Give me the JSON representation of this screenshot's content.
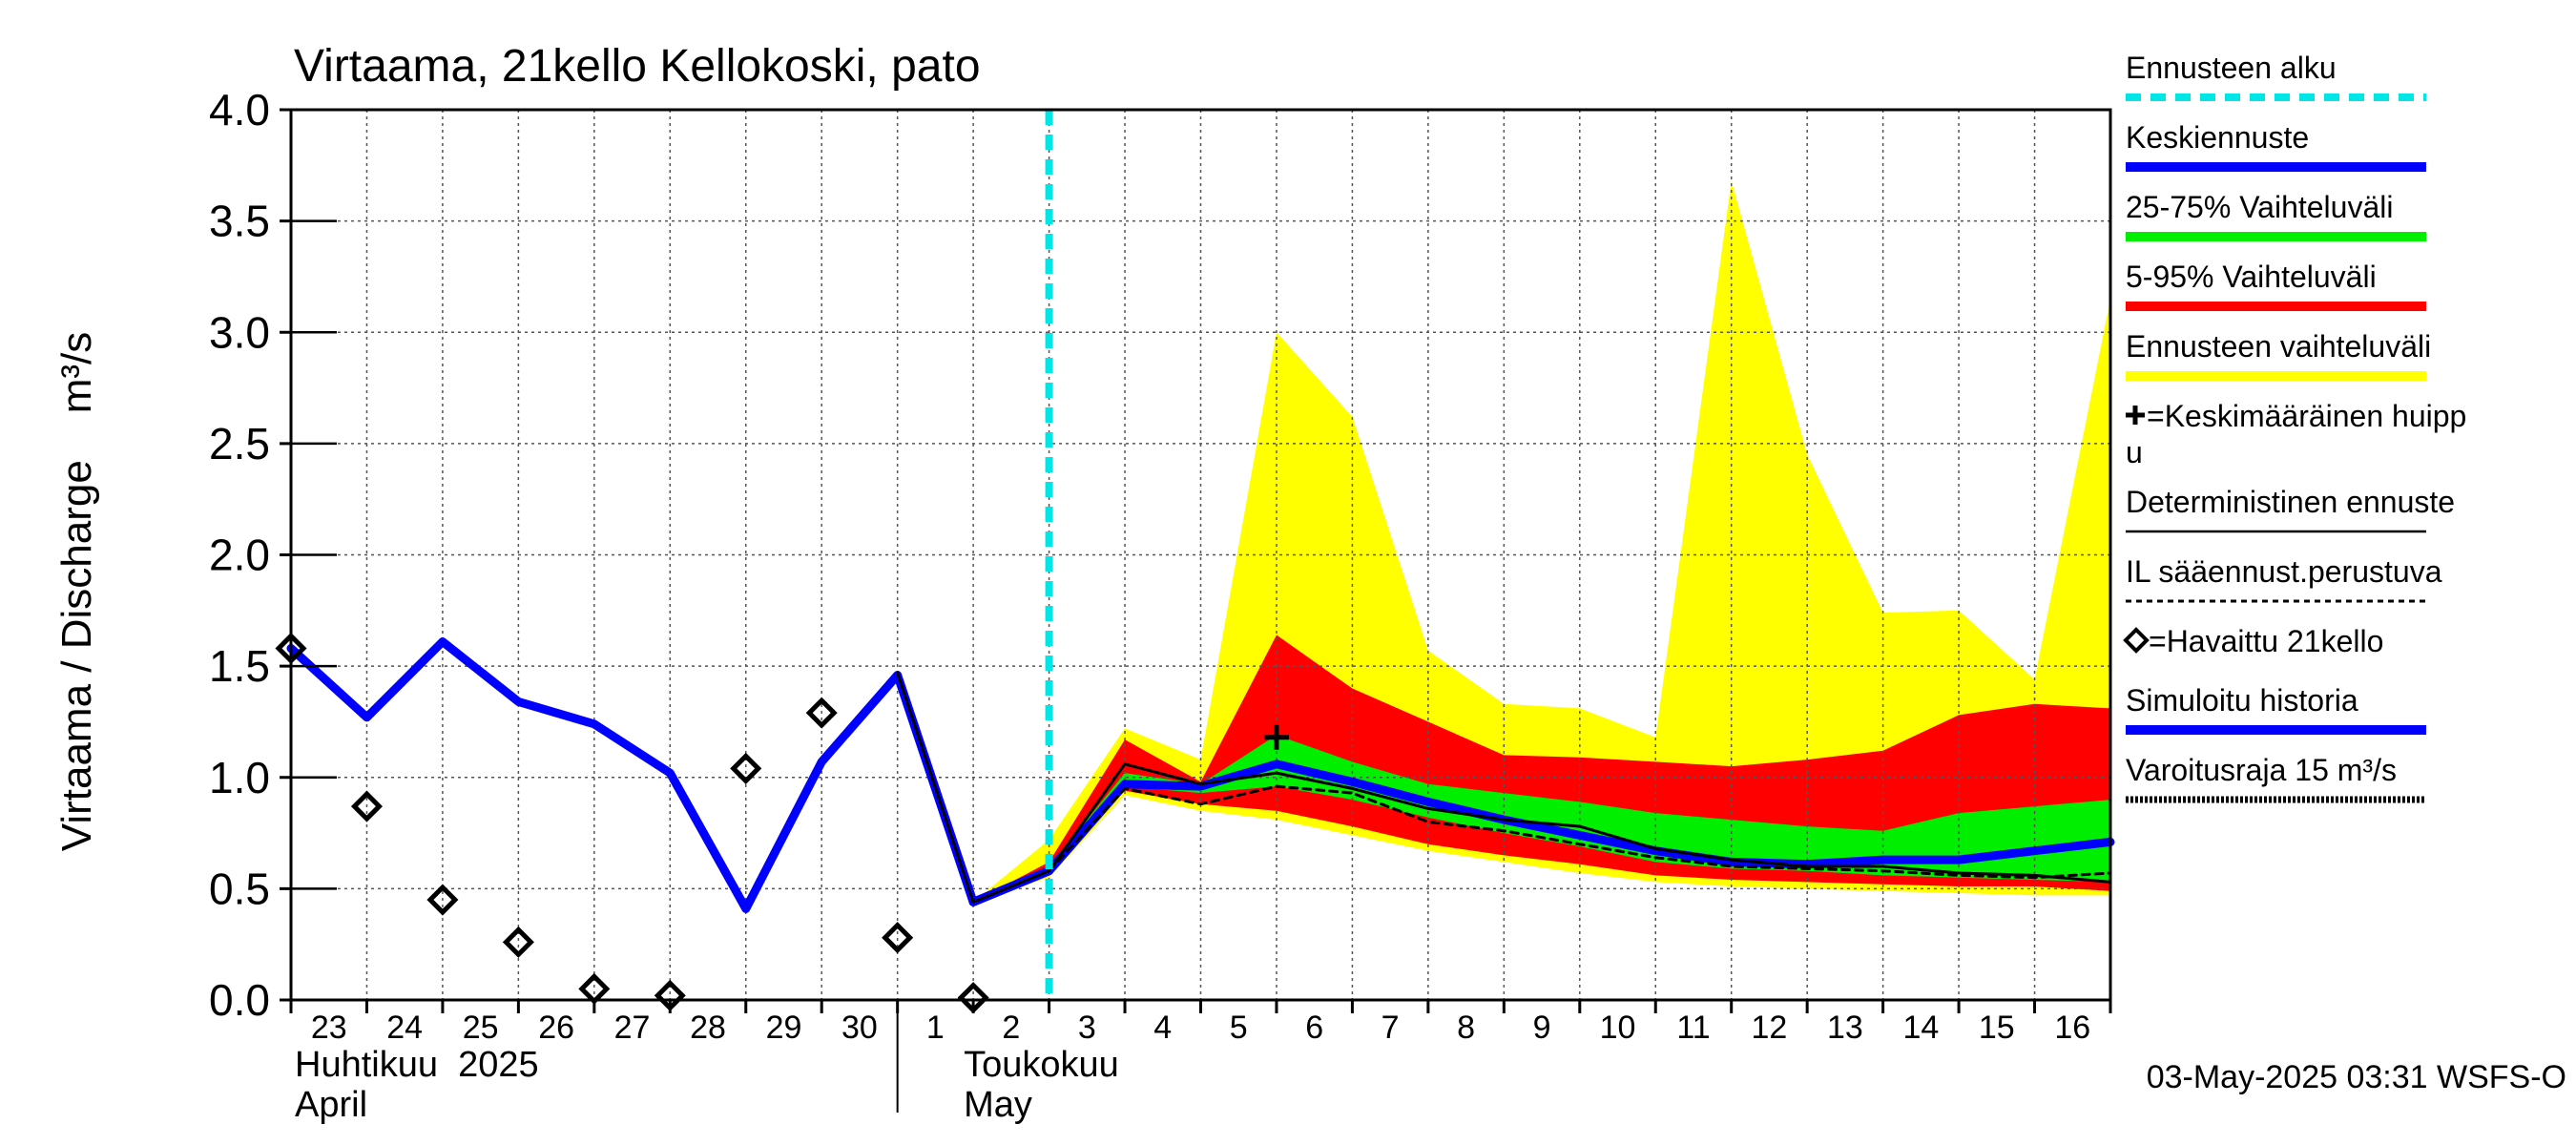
{
  "chart_data": {
    "type": "area",
    "title": "Virtaama, 21kello Kellokoski, pato",
    "ylabel": "Virtaama / Discharge    m³/s",
    "ylim": [
      0.0,
      4.0
    ],
    "yticks": [
      0.0,
      0.5,
      1.0,
      1.5,
      2.0,
      2.5,
      3.0,
      3.5,
      4.0
    ],
    "ytick_labels": [
      "0.0",
      "0.5",
      "1.0",
      "1.5",
      "2.0",
      "2.5",
      "3.0",
      "3.5",
      "4.0"
    ],
    "x_days": [
      "23",
      "24",
      "25",
      "26",
      "27",
      "28",
      "29",
      "30",
      "1",
      "2",
      "3",
      "4",
      "5",
      "6",
      "7",
      "8",
      "9",
      "10",
      "11",
      "12",
      "13",
      "14",
      "15",
      "16"
    ],
    "x_range_days": [
      0,
      24
    ],
    "month_labels": {
      "april_fi": "Huhtikuu  2025",
      "april_en": "April",
      "may_fi": "Toukokuu",
      "may_en": "May"
    },
    "forecast_start_day": 10,
    "series": {
      "forecast_range": {
        "name": "Ennusteen vaihteluväli",
        "color": "#ffff00",
        "x": [
          9,
          10,
          11,
          12,
          13,
          14,
          15,
          16,
          17,
          18,
          19,
          20,
          21,
          22,
          23,
          24
        ],
        "upper": [
          0.44,
          0.72,
          1.22,
          1.08,
          3.0,
          2.62,
          1.57,
          1.33,
          1.31,
          1.18,
          3.68,
          2.45,
          1.74,
          1.75,
          1.44,
          3.15
        ],
        "lower": [
          0.44,
          0.55,
          0.92,
          0.85,
          0.81,
          0.74,
          0.67,
          0.62,
          0.57,
          0.53,
          0.51,
          0.5,
          0.49,
          0.48,
          0.47,
          0.47
        ]
      },
      "range_5_95": {
        "name": "5-95% Vaihteluväli",
        "color": "#ff0000",
        "x": [
          9,
          10,
          11,
          12,
          13,
          14,
          15,
          16,
          17,
          18,
          19,
          20,
          21,
          22,
          23,
          24
        ],
        "upper": [
          0.44,
          0.62,
          1.17,
          0.98,
          1.64,
          1.4,
          1.25,
          1.1,
          1.09,
          1.07,
          1.05,
          1.08,
          1.12,
          1.28,
          1.33,
          1.31
        ],
        "lower": [
          0.44,
          0.57,
          0.94,
          0.88,
          0.85,
          0.78,
          0.7,
          0.65,
          0.61,
          0.56,
          0.54,
          0.53,
          0.52,
          0.51,
          0.51,
          0.49
        ]
      },
      "range_25_75": {
        "name": "25-75% Vaihteluväli",
        "color": "#00ee00",
        "x": [
          9,
          10,
          11,
          12,
          13,
          14,
          15,
          16,
          17,
          18,
          19,
          20,
          21,
          22,
          23,
          24
        ],
        "upper": [
          0.44,
          0.6,
          1.02,
          0.97,
          1.19,
          1.07,
          0.97,
          0.93,
          0.89,
          0.84,
          0.81,
          0.78,
          0.76,
          0.84,
          0.87,
          0.9
        ],
        "lower": [
          0.44,
          0.58,
          0.96,
          0.93,
          0.96,
          0.9,
          0.82,
          0.75,
          0.69,
          0.62,
          0.59,
          0.58,
          0.56,
          0.55,
          0.54,
          0.53
        ]
      },
      "mean_forecast": {
        "name": "Keskiennuste",
        "color": "#0000ff",
        "x": [
          9,
          10,
          11,
          12,
          13,
          14,
          15,
          16,
          17,
          18,
          19,
          20,
          21,
          22,
          23,
          24
        ],
        "values": [
          0.44,
          0.58,
          0.97,
          0.96,
          1.06,
          0.98,
          0.89,
          0.81,
          0.74,
          0.67,
          0.62,
          0.61,
          0.63,
          0.63,
          0.67,
          0.71
        ]
      },
      "deterministic": {
        "name": "Deterministinen ennuste",
        "color": "#000000",
        "x": [
          8,
          9,
          10,
          11,
          12,
          13,
          14,
          15,
          16,
          17,
          18,
          19,
          20,
          21,
          22,
          23,
          24
        ],
        "values": [
          1.47,
          0.44,
          0.58,
          1.06,
          0.97,
          1.02,
          0.95,
          0.86,
          0.81,
          0.78,
          0.68,
          0.63,
          0.6,
          0.6,
          0.57,
          0.56,
          0.53
        ]
      },
      "weather_forecast": {
        "name": "IL sääennust.perustuva",
        "color": "#000000",
        "x": [
          10,
          11,
          12,
          13,
          14,
          15,
          16,
          17,
          18,
          19,
          20,
          21,
          22,
          23,
          24
        ],
        "values": [
          0.58,
          0.95,
          0.88,
          0.96,
          0.93,
          0.8,
          0.76,
          0.7,
          0.64,
          0.6,
          0.59,
          0.58,
          0.56,
          0.55,
          0.57
        ]
      },
      "simulated_history": {
        "name": "Simuloitu historia",
        "color": "#0000ff",
        "x": [
          0,
          1,
          2,
          3,
          4,
          5,
          6,
          7,
          8,
          9,
          10
        ],
        "values": [
          1.58,
          1.27,
          1.61,
          1.34,
          1.24,
          1.02,
          0.41,
          1.07,
          1.46,
          0.44,
          0.58
        ]
      },
      "observed": {
        "name": "=Havaittu 21kello",
        "x": [
          0,
          1,
          2,
          3,
          4,
          5,
          6,
          7,
          8,
          9
        ],
        "values": [
          1.58,
          0.87,
          0.45,
          0.26,
          0.05,
          0.02,
          1.04,
          1.29,
          0.28,
          0.01
        ]
      },
      "mean_peak": {
        "name": "=Keskimääräinen huippu",
        "x": 13,
        "value": 1.18
      }
    },
    "legend": {
      "position": "right",
      "items": [
        {
          "key": "forecast_start",
          "label": "Ennusteen alku",
          "color": "#00e5e5",
          "style": "dashed"
        },
        {
          "key": "mean",
          "label": "Keskiennuste",
          "color": "#0000ff",
          "style": "thick"
        },
        {
          "key": "r2575",
          "label": "25-75% Vaihteluväli",
          "color": "#00ee00",
          "style": "thick"
        },
        {
          "key": "r595",
          "label": "5-95% Vaihteluväli",
          "color": "#ff0000",
          "style": "thick"
        },
        {
          "key": "range",
          "label": "Ennusteen vaihteluväli",
          "color": "#ffff00",
          "style": "thick"
        },
        {
          "key": "peak",
          "label": "=Keskimääräinen huipp",
          "label_wrap": "u",
          "style": "plus"
        },
        {
          "key": "det",
          "label": "Deterministinen ennuste",
          "color": "#000000",
          "style": "thin"
        },
        {
          "key": "il",
          "label": "IL sääennust.perustuva",
          "color": "#000000",
          "style": "dotted"
        },
        {
          "key": "obs",
          "label": "=Havaittu 21kello",
          "style": "diamond"
        },
        {
          "key": "sim",
          "label": "Simuloitu historia",
          "color": "#0000ff",
          "style": "thick"
        },
        {
          "key": "warn",
          "label": "Varoitusraja 15 m³/s",
          "color": "#000000",
          "style": "dotted-thick"
        }
      ]
    },
    "footer": "03-May-2025 03:31 WSFS-O"
  }
}
